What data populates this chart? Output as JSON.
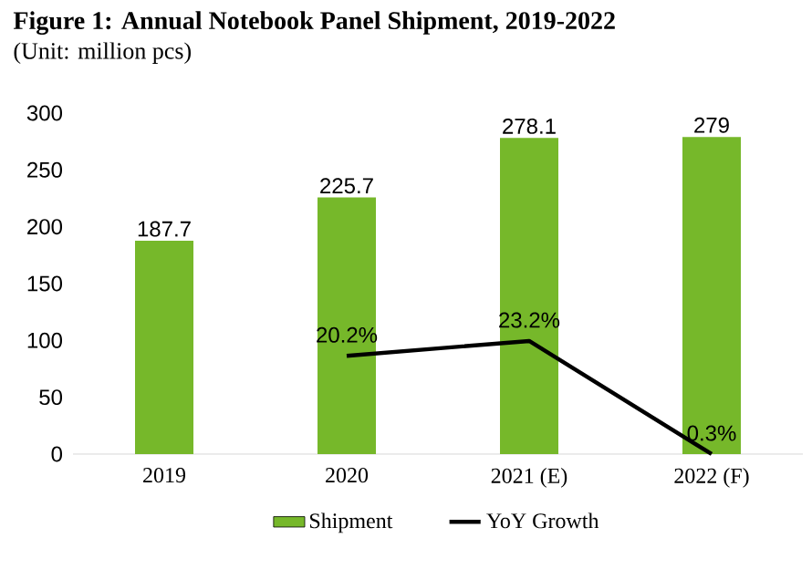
{
  "chart_data": {
    "type": "bar",
    "title": "Figure 1: Annual Notebook Panel Shipment, 2019-2022",
    "subtitle": "(Unit: million pcs)",
    "categories": [
      "2019",
      "2020",
      "2021 (E)",
      "2022 (F)"
    ],
    "series": [
      {
        "name": "Shipment",
        "color": "#76b82a",
        "values": [
          187.7,
          225.7,
          278.1,
          279
        ],
        "value_labels": [
          "187.7",
          "225.7",
          "278.1",
          "279"
        ]
      },
      {
        "name": "YoY Growth",
        "type": "line",
        "axis": "y2",
        "color": "#000000",
        "values": [
          null,
          20.2,
          23.2,
          0.3
        ],
        "value_labels": [
          null,
          "20.2%",
          "23.2%",
          "0.3%"
        ]
      }
    ],
    "ylim": [
      0,
      300
    ],
    "yticks": [
      0,
      50,
      100,
      150,
      200,
      250,
      300
    ],
    "grid": false,
    "legend": "bottom"
  }
}
